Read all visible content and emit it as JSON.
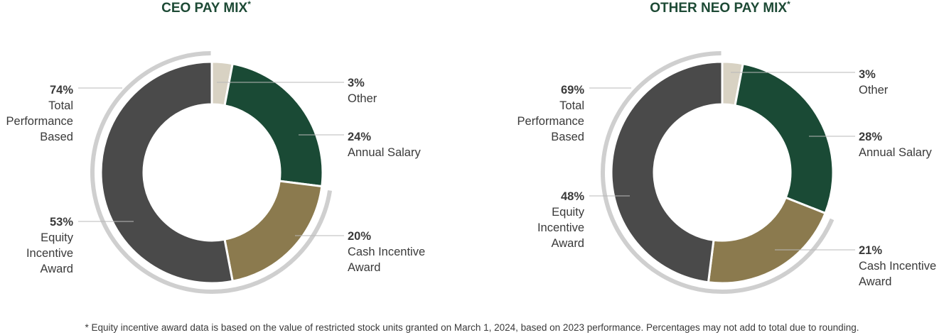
{
  "footnote": "* Equity incentive award data is based on the value of restricted stock units granted on March 1, 2024, based on 2023 performance. Percentages may not add to total due to rounding.",
  "chart_data": [
    {
      "type": "pie",
      "title": "CEO PAY MIX",
      "title_mark": "*",
      "categories": [
        "Other",
        "Annual Salary",
        "Cash Incentive Award",
        "Equity Incentive Award"
      ],
      "values": [
        3,
        24,
        20,
        53
      ],
      "labels": [
        {
          "pct": "3%",
          "lines": [
            "Other"
          ]
        },
        {
          "pct": "24%",
          "lines": [
            "Annual Salary"
          ]
        },
        {
          "pct": "20%",
          "lines": [
            "Cash Incentive",
            "Award"
          ]
        },
        {
          "pct": "53%",
          "lines": [
            "Equity",
            "Incentive",
            "Award"
          ]
        }
      ],
      "colors": [
        "#d8d2c3",
        "#1a4a35",
        "#8b7a4e",
        "#4a4a4a"
      ],
      "group": {
        "pct": "74%",
        "lines": [
          "Total",
          "Performance",
          "Based"
        ],
        "includes": [
          "Cash Incentive Award",
          "Equity Incentive Award"
        ]
      }
    },
    {
      "type": "pie",
      "title": "OTHER NEO PAY MIX",
      "title_mark": "*",
      "categories": [
        "Other",
        "Annual Salary",
        "Cash Incentive Award",
        "Equity Incentive Award"
      ],
      "values": [
        3,
        28,
        21,
        48
      ],
      "labels": [
        {
          "pct": "3%",
          "lines": [
            "Other"
          ]
        },
        {
          "pct": "28%",
          "lines": [
            "Annual Salary"
          ]
        },
        {
          "pct": "21%",
          "lines": [
            "Cash Incentive",
            "Award"
          ]
        },
        {
          "pct": "48%",
          "lines": [
            "Equity",
            "Incentive",
            "Award"
          ]
        }
      ],
      "colors": [
        "#d8d2c3",
        "#1a4a35",
        "#8b7a4e",
        "#4a4a4a"
      ],
      "group": {
        "pct": "69%",
        "lines": [
          "Total",
          "Performance",
          "Based"
        ],
        "includes": [
          "Cash Incentive Award",
          "Equity Incentive Award"
        ]
      }
    }
  ]
}
